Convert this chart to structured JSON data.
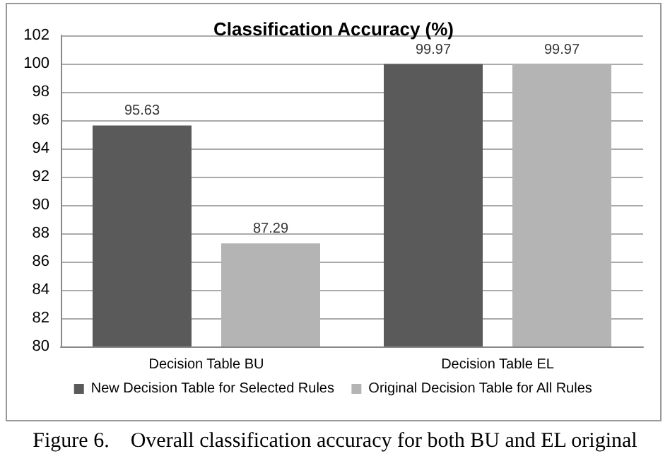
{
  "chart_data": {
    "type": "bar",
    "title": "Classification Accuracy (%)",
    "categories": [
      "Decision Table BU",
      "Decision Table EL"
    ],
    "series": [
      {
        "name": "New Decision Table for Selected Rules",
        "color": "#5a5a5a",
        "values": [
          95.63,
          99.97
        ]
      },
      {
        "name": "Original Decision Table for All Rules",
        "color": "#b4b4b4",
        "values": [
          87.29,
          99.97
        ]
      }
    ],
    "ylim": [
      80,
      102
    ],
    "yticks": [
      80,
      82,
      84,
      86,
      88,
      90,
      92,
      94,
      96,
      98,
      100,
      102
    ],
    "grid": "y",
    "legend": "bottom",
    "data_labels": true,
    "annotations": [
      "Figure 6.    Overall classification accuracy for both BU and EL original"
    ]
  }
}
